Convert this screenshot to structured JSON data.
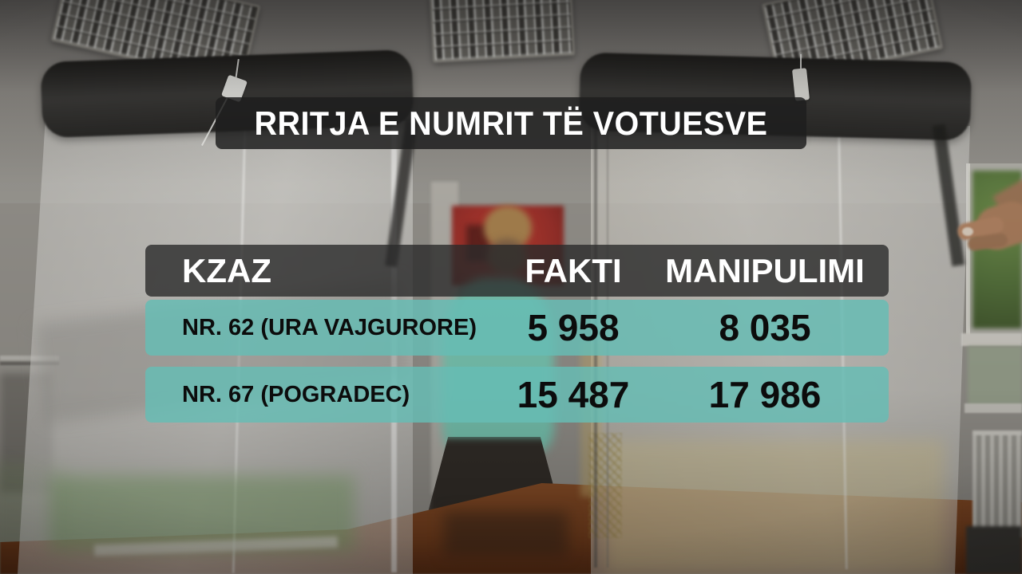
{
  "title": "RRITJA E NUMRIT TË VOTUESVE",
  "table": {
    "columns": {
      "kzaz": "KZAZ",
      "fakti": "FAKTI",
      "manipulimi": "MANIPULIMI"
    },
    "rows": [
      {
        "kzaz": "NR. 62 (URA VAJGURORE)",
        "fakti": "5 958",
        "manipulimi": "8 035"
      },
      {
        "kzaz": "NR. 67 (POGRADEC)",
        "fakti": "15 487",
        "manipulimi": "17 986"
      }
    ]
  },
  "colors": {
    "row_teal": "#67bcb4",
    "bar_dark": "#2a2a2a",
    "header_text": "#ffffff",
    "row_text": "#0c0c0c",
    "wood_table": "#7a421f",
    "poster_red": "#a83228"
  },
  "chart_data": {
    "type": "table",
    "title": "RRITJA E NUMRIT TË VOTUESVE",
    "columns": [
      "KZAZ",
      "FAKTI",
      "MANIPULIMI"
    ],
    "categories": [
      "NR. 62 (URA VAJGURORE)",
      "NR. 67 (POGRADEC)"
    ],
    "series": [
      {
        "name": "FAKTI",
        "values": [
          5958,
          15487
        ]
      },
      {
        "name": "MANIPULIMI",
        "values": [
          8035,
          17986
        ]
      }
    ],
    "rows": [
      [
        "NR. 62 (URA VAJGURORE)",
        "5 958",
        "8 035"
      ],
      [
        "NR. 67 (POGRADEC)",
        "15 487",
        "17 986"
      ]
    ]
  }
}
